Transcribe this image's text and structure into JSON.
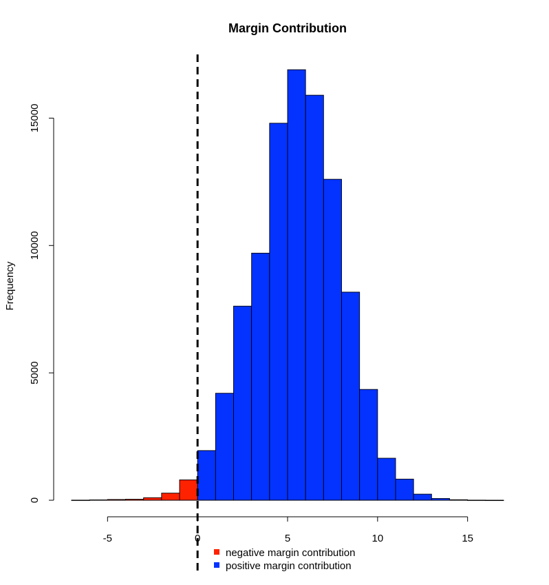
{
  "chart_data": {
    "type": "bar",
    "title": "Margin Contribution",
    "xlabel": "",
    "ylabel": "Frequency",
    "xlim": [
      -7,
      17
    ],
    "ylim": [
      0,
      17500
    ],
    "bin_width": 1,
    "x_ticks": [
      -5,
      0,
      5,
      10,
      15
    ],
    "y_ticks": [
      0,
      5000,
      10000,
      15000
    ],
    "reference_line": {
      "x": 0,
      "style": "dashed",
      "color": "#000000"
    },
    "colors": {
      "negative": "#ff2200",
      "positive": "#0433ff"
    },
    "series": [
      {
        "name": "negative margin contribution",
        "color": "#ff2200",
        "bins": [
          {
            "x0": -7,
            "x1": -6,
            "value": 5
          },
          {
            "x0": -6,
            "x1": -5,
            "value": 15
          },
          {
            "x0": -5,
            "x1": -4,
            "value": 30
          },
          {
            "x0": -4,
            "x1": -3,
            "value": 40
          },
          {
            "x0": -3,
            "x1": -2,
            "value": 100
          },
          {
            "x0": -2,
            "x1": -1,
            "value": 280
          },
          {
            "x0": -1,
            "x1": 0,
            "value": 800
          }
        ]
      },
      {
        "name": "positive margin contribution",
        "color": "#0433ff",
        "bins": [
          {
            "x0": 0,
            "x1": 1,
            "value": 1950
          },
          {
            "x0": 1,
            "x1": 2,
            "value": 4200
          },
          {
            "x0": 2,
            "x1": 3,
            "value": 7620
          },
          {
            "x0": 3,
            "x1": 4,
            "value": 9700
          },
          {
            "x0": 4,
            "x1": 5,
            "value": 14800
          },
          {
            "x0": 5,
            "x1": 6,
            "value": 16900
          },
          {
            "x0": 6,
            "x1": 7,
            "value": 15900
          },
          {
            "x0": 7,
            "x1": 8,
            "value": 12600
          },
          {
            "x0": 8,
            "x1": 9,
            "value": 8170
          },
          {
            "x0": 9,
            "x1": 10,
            "value": 4350
          },
          {
            "x0": 10,
            "x1": 11,
            "value": 1650
          },
          {
            "x0": 11,
            "x1": 12,
            "value": 830
          },
          {
            "x0": 12,
            "x1": 13,
            "value": 240
          },
          {
            "x0": 13,
            "x1": 14,
            "value": 70
          },
          {
            "x0": 14,
            "x1": 15,
            "value": 20
          },
          {
            "x0": 15,
            "x1": 16,
            "value": 5
          },
          {
            "x0": 16,
            "x1": 17,
            "value": 2
          }
        ]
      }
    ],
    "legend": {
      "position": "bottom-center",
      "entries": [
        {
          "label": "negative margin contribution",
          "color": "#ff2200"
        },
        {
          "label": "positive margin contribution",
          "color": "#0433ff"
        }
      ]
    },
    "grid": false
  }
}
